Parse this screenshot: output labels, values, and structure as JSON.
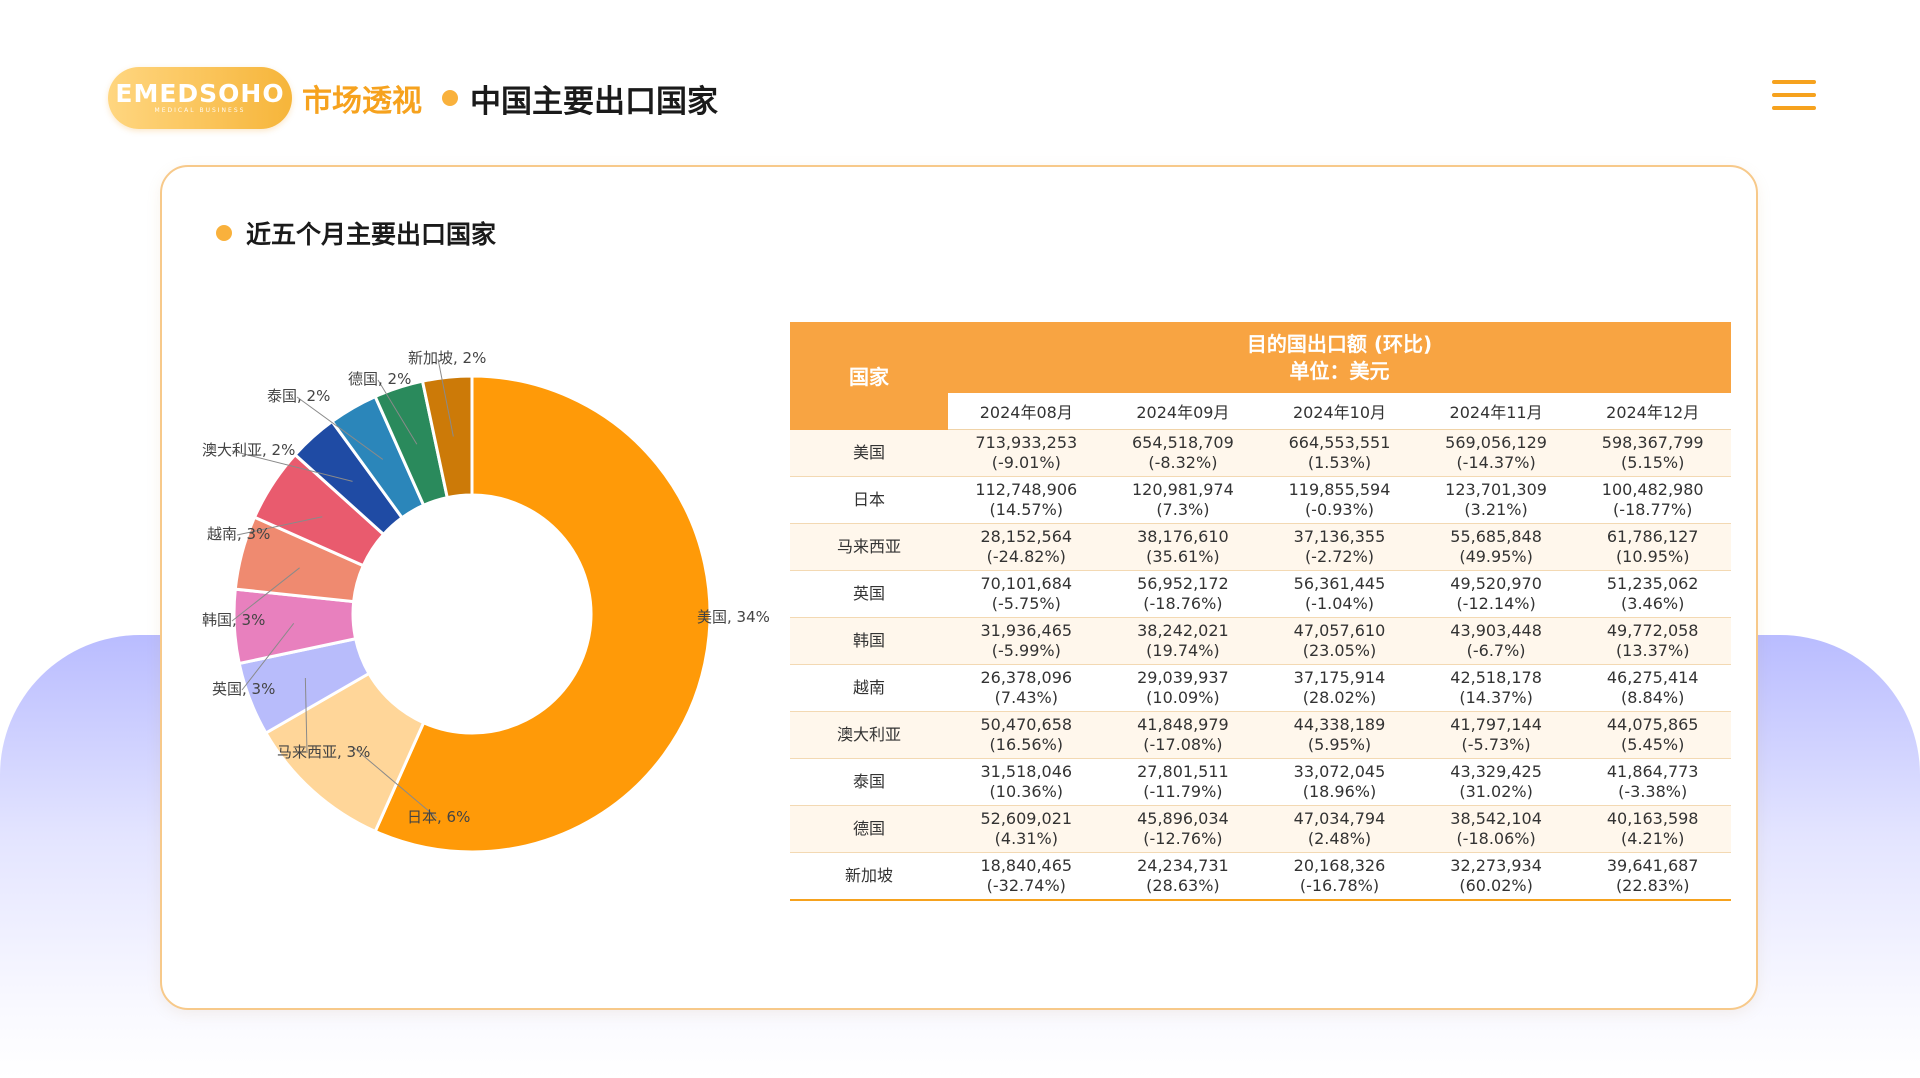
{
  "header": {
    "logo_text": "EMEDSOHO",
    "logo_sub": "MEDICAL BUSINESS",
    "section": "市场透视",
    "title": "中国主要出口国家"
  },
  "card": {
    "subtitle": "近五个月主要出口国家"
  },
  "colors": {
    "accent": "#f6a21e",
    "table_header": "#f8a442",
    "row_alt": "#fff7ec",
    "background_wave": "#b9bcff"
  },
  "icons": {
    "menu": "hamburger-menu-icon"
  },
  "chart_data": {
    "type": "pie",
    "donut": true,
    "slices": [
      {
        "label": "美国, 34%",
        "name": "美国",
        "value": 34,
        "color": "#ff9a08"
      },
      {
        "label": "日本, 6%",
        "name": "日本",
        "value": 6,
        "color": "#ffd699"
      },
      {
        "label": "马来西亚, 3%",
        "name": "马来西亚",
        "value": 3,
        "color": "#b8bcfb"
      },
      {
        "label": "英国, 3%",
        "name": "英国",
        "value": 3,
        "color": "#e880be"
      },
      {
        "label": "韩国, 3%",
        "name": "韩国",
        "value": 3,
        "color": "#ef8a70"
      },
      {
        "label": "越南, 3%",
        "name": "越南",
        "value": 3,
        "color": "#e95b6e"
      },
      {
        "label": "澳大利亚, 2%",
        "name": "澳大利亚",
        "value": 2,
        "color": "#1f4ba4"
      },
      {
        "label": "泰国, 2%",
        "name": "泰国",
        "value": 2,
        "color": "#2b86ba"
      },
      {
        "label": "德国, 2%",
        "name": "德国",
        "value": 2,
        "color": "#2a8a5c"
      },
      {
        "label": "新加坡, 2%",
        "name": "新加坡",
        "value": 2,
        "color": "#cc7a08"
      }
    ]
  },
  "table": {
    "country_header": "国家",
    "main_header": "目的国出口额 (环比)",
    "unit": "单位：美元",
    "months": [
      "2024年08月",
      "2024年09月",
      "2024年10月",
      "2024年11月",
      "2024年12月"
    ],
    "rows": [
      {
        "country": "美国",
        "cells": [
          [
            "713,933,253",
            "(-9.01%)"
          ],
          [
            "654,518,709",
            "(-8.32%)"
          ],
          [
            "664,553,551",
            "(1.53%)"
          ],
          [
            "569,056,129",
            "(-14.37%)"
          ],
          [
            "598,367,799",
            "(5.15%)"
          ]
        ]
      },
      {
        "country": "日本",
        "cells": [
          [
            "112,748,906",
            "(14.57%)"
          ],
          [
            "120,981,974",
            "(7.3%)"
          ],
          [
            "119,855,594",
            "(-0.93%)"
          ],
          [
            "123,701,309",
            "(3.21%)"
          ],
          [
            "100,482,980",
            "(-18.77%)"
          ]
        ]
      },
      {
        "country": "马来西亚",
        "cells": [
          [
            "28,152,564",
            "(-24.82%)"
          ],
          [
            "38,176,610",
            "(35.61%)"
          ],
          [
            "37,136,355",
            "(-2.72%)"
          ],
          [
            "55,685,848",
            "(49.95%)"
          ],
          [
            "61,786,127",
            "(10.95%)"
          ]
        ]
      },
      {
        "country": "英国",
        "cells": [
          [
            "70,101,684",
            "(-5.75%)"
          ],
          [
            "56,952,172",
            "(-18.76%)"
          ],
          [
            "56,361,445",
            "(-1.04%)"
          ],
          [
            "49,520,970",
            "(-12.14%)"
          ],
          [
            "51,235,062",
            "(3.46%)"
          ]
        ]
      },
      {
        "country": "韩国",
        "cells": [
          [
            "31,936,465",
            "(-5.99%)"
          ],
          [
            "38,242,021",
            "(19.74%)"
          ],
          [
            "47,057,610",
            "(23.05%)"
          ],
          [
            "43,903,448",
            "(-6.7%)"
          ],
          [
            "49,772,058",
            "(13.37%)"
          ]
        ]
      },
      {
        "country": "越南",
        "cells": [
          [
            "26,378,096",
            "(7.43%)"
          ],
          [
            "29,039,937",
            "(10.09%)"
          ],
          [
            "37,175,914",
            "(28.02%)"
          ],
          [
            "42,518,178",
            "(14.37%)"
          ],
          [
            "46,275,414",
            "(8.84%)"
          ]
        ]
      },
      {
        "country": "澳大利亚",
        "cells": [
          [
            "50,470,658",
            "(16.56%)"
          ],
          [
            "41,848,979",
            "(-17.08%)"
          ],
          [
            "44,338,189",
            "(5.95%)"
          ],
          [
            "41,797,144",
            "(-5.73%)"
          ],
          [
            "44,075,865",
            "(5.45%)"
          ]
        ]
      },
      {
        "country": "泰国",
        "cells": [
          [
            "31,518,046",
            "(10.36%)"
          ],
          [
            "27,801,511",
            "(-11.79%)"
          ],
          [
            "33,072,045",
            "(18.96%)"
          ],
          [
            "43,329,425",
            "(31.02%)"
          ],
          [
            "41,864,773",
            "(-3.38%)"
          ]
        ]
      },
      {
        "country": "德国",
        "cells": [
          [
            "52,609,021",
            "(4.31%)"
          ],
          [
            "45,896,034",
            "(-12.76%)"
          ],
          [
            "47,034,794",
            "(2.48%)"
          ],
          [
            "38,542,104",
            "(-18.06%)"
          ],
          [
            "40,163,598",
            "(4.21%)"
          ]
        ]
      },
      {
        "country": "新加坡",
        "cells": [
          [
            "18,840,465",
            "(-32.74%)"
          ],
          [
            "24,234,731",
            "(28.63%)"
          ],
          [
            "20,168,326",
            "(-16.78%)"
          ],
          [
            "32,273,934",
            "(60.02%)"
          ],
          [
            "39,641,687",
            "(22.83%)"
          ]
        ]
      }
    ]
  }
}
